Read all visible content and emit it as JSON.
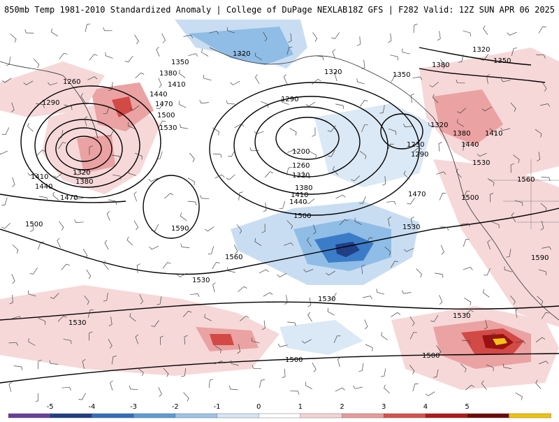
{
  "header": {
    "title_left": "850mb Temp 1981-2010 Standardized Anomaly | College of DuPage NEXLAB",
    "title_right": "18Z GFS | F282 Valid: 12Z SUN APR 06 2025"
  },
  "contour_labels": [
    "1320",
    "1350",
    "1380",
    "1410",
    "1440",
    "1470",
    "1500",
    "1530",
    "1560",
    "1590",
    "1260",
    "1290",
    "1200",
    "1230"
  ],
  "legend": {
    "ticks": [
      "-5",
      "-4",
      "-3",
      "-2",
      "-1",
      "0",
      "1",
      "2",
      "3",
      "4",
      "5"
    ],
    "colors": [
      "#6a3d9a",
      "#1f3f86",
      "#2f6fbf",
      "#5b9bd5",
      "#9cc3e6",
      "#d6e6f5",
      "#ffffff",
      "#f5d3d3",
      "#e89a9a",
      "#d9504a",
      "#b01818",
      "#6e0a0a",
      "#f0c20a"
    ]
  },
  "colors": {
    "cold_light": "#c9ddf2",
    "cold_mid": "#8fbde6",
    "cold_dark": "#3a7cc7",
    "cold_deep": "#1f3f86",
    "warm_light": "#f6d8d8",
    "warm_mid": "#eaa2a2",
    "warm_dark": "#d24a46",
    "warm_deep": "#9b1010",
    "warm_peak": "#f2c318"
  }
}
